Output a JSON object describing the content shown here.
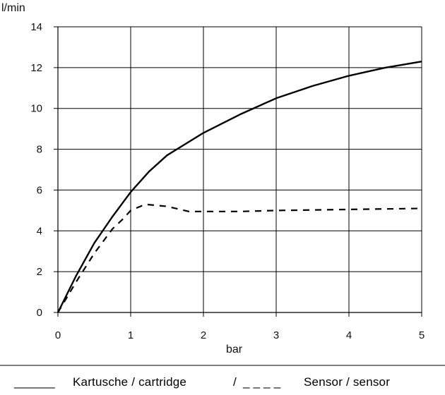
{
  "chart_data": {
    "type": "line",
    "xlabel": "bar",
    "ylabel": "l/min",
    "xlim": [
      0,
      5
    ],
    "ylim": [
      0,
      14
    ],
    "x_ticks": [
      "0",
      "1",
      "2",
      "3",
      "4",
      "5"
    ],
    "y_ticks": [
      "0",
      "2",
      "4",
      "6",
      "8",
      "10",
      "12",
      "14"
    ],
    "grid": true,
    "series": [
      {
        "style": "solid",
        "x": [
          0,
          0.25,
          0.5,
          0.75,
          1.0,
          1.25,
          1.5,
          2.0,
          2.5,
          3.0,
          3.5,
          4.0,
          4.5,
          5.0
        ],
        "y": [
          0,
          1.8,
          3.4,
          4.7,
          5.9,
          6.9,
          7.7,
          8.8,
          9.7,
          10.5,
          11.1,
          11.6,
          12.0,
          12.3
        ]
      },
      {
        "style": "dashed",
        "x": [
          0,
          0.25,
          0.5,
          0.75,
          0.9,
          1.0,
          1.2,
          1.5,
          1.8,
          2.5,
          3.0,
          4.0,
          5.0
        ],
        "y": [
          0,
          1.5,
          2.9,
          4.1,
          4.6,
          5.0,
          5.3,
          5.2,
          4.95,
          4.95,
          5.0,
          5.05,
          5.1
        ]
      }
    ]
  },
  "legend": {
    "solid_line": "______",
    "solid_label": "Kartusche / cartridge",
    "separator": "/",
    "dashed_line": "_ _ _ _",
    "dashed_label": "Sensor / sensor"
  }
}
